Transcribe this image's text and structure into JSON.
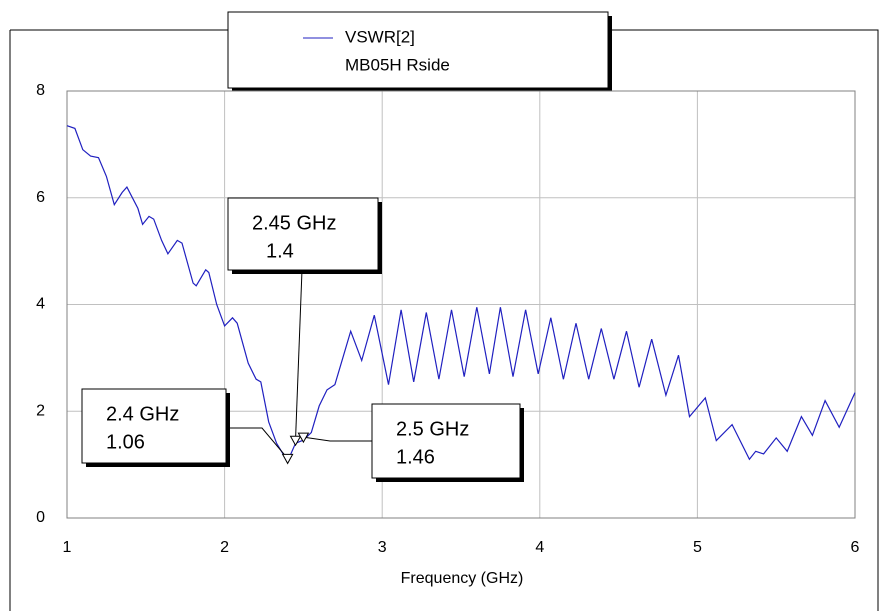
{
  "chart_data": {
    "type": "line",
    "x_label": "Frequency (GHz)",
    "legend_note": "MB05H Rside",
    "series": [
      {
        "name": "VSWR[2]",
        "color": "#2020c0",
        "x": [
          1.0,
          1.05,
          1.1,
          1.15,
          1.2,
          1.25,
          1.3,
          1.35,
          1.38,
          1.45,
          1.48,
          1.52,
          1.55,
          1.6,
          1.64,
          1.7,
          1.73,
          1.8,
          1.82,
          1.88,
          1.9,
          1.95,
          2.0,
          2.05,
          2.08,
          2.15,
          2.2,
          2.23,
          2.28,
          2.33,
          2.4,
          2.45,
          2.5,
          2.55,
          2.6,
          2.65,
          2.7,
          2.75,
          2.8,
          2.87,
          2.95,
          3.04,
          3.12,
          3.2,
          3.28,
          3.36,
          3.44,
          3.52,
          3.6,
          3.68,
          3.75,
          3.83,
          3.91,
          3.99,
          4.07,
          4.15,
          4.23,
          4.31,
          4.39,
          4.47,
          4.55,
          4.63,
          4.71,
          4.8,
          4.88,
          4.95,
          5.05,
          5.12,
          5.22,
          5.33,
          5.37,
          5.42,
          5.5,
          5.57,
          5.66,
          5.73,
          5.81,
          5.9,
          6.0
        ],
        "values": [
          7.35,
          7.3,
          6.9,
          6.78,
          6.75,
          6.4,
          5.87,
          6.1,
          6.2,
          5.8,
          5.5,
          5.65,
          5.6,
          5.2,
          4.95,
          5.2,
          5.15,
          4.4,
          4.35,
          4.65,
          4.6,
          4.0,
          3.6,
          3.75,
          3.65,
          2.9,
          2.6,
          2.55,
          1.8,
          1.4,
          1.06,
          1.4,
          1.46,
          1.6,
          2.1,
          2.4,
          2.5,
          3.0,
          3.5,
          2.95,
          3.8,
          2.5,
          3.9,
          2.55,
          3.85,
          2.6,
          3.9,
          2.65,
          3.95,
          2.7,
          3.95,
          2.65,
          3.9,
          2.7,
          3.75,
          2.6,
          3.65,
          2.6,
          3.55,
          2.6,
          3.5,
          2.45,
          3.35,
          2.3,
          3.05,
          1.9,
          2.25,
          1.45,
          1.75,
          1.1,
          1.25,
          1.2,
          1.5,
          1.25,
          1.9,
          1.55,
          2.2,
          1.7,
          2.35
        ]
      }
    ],
    "annotations": [
      {
        "label": "2.4 GHz",
        "x": 2.4,
        "y": 1.06
      },
      {
        "label": "2.45 GHz",
        "x": 2.45,
        "y": 1.4
      },
      {
        "label": "2.5 GHz",
        "x": 2.5,
        "y": 1.46
      }
    ],
    "xlim": [
      1,
      6
    ],
    "xticks": [
      1,
      2,
      3,
      4,
      5,
      6
    ],
    "ylim": [
      0,
      8
    ],
    "yticks": [
      0,
      2,
      4,
      6,
      8
    ],
    "grid": true
  }
}
